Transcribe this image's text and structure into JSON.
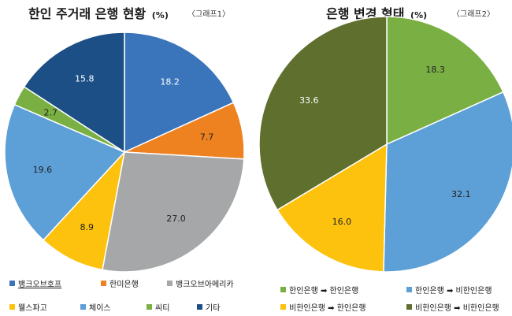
{
  "colors": {
    "bank_of_hope": "#3a74bb",
    "hanmi": "#ee8221",
    "bank_of_america": "#a5a7a8",
    "wells_fargo": "#fdc20e",
    "chase": "#5d9fd7",
    "citi": "#7ab043",
    "other": "#1c4f86",
    "k_to_k": "#7ab043",
    "k_to_nk": "#5d9fd7",
    "nk_to_k": "#fdc20e",
    "nk_to_nk": "#5e6f2e"
  },
  "chart_data": [
    {
      "type": "pie",
      "title": "한인 주거래 은행 현황",
      "unit": "(%)",
      "tag": "〈그래프1〉",
      "slices": [
        {
          "label": "뱅크오브호프",
          "value": 18.2,
          "display": "18.2",
          "color": "#3a74bb"
        },
        {
          "label": "한미은행",
          "value": 7.7,
          "display": "7.7",
          "color": "#ee8221"
        },
        {
          "label": "뱅크오브아메리카",
          "value": 27.0,
          "display": "27.0",
          "color": "#a5a7a8"
        },
        {
          "label": "웰스파고",
          "value": 8.9,
          "display": "8.9",
          "color": "#fdc20e"
        },
        {
          "label": "체이스",
          "value": 19.6,
          "display": "19.6",
          "color": "#5d9fd7"
        },
        {
          "label": "씨티",
          "value": 2.7,
          "display": "2.7",
          "color": "#7ab043"
        },
        {
          "label": "기타",
          "value": 15.8,
          "display": "15.8",
          "color": "#1c4f86"
        }
      ],
      "legend": [
        "뱅크오브호프",
        "한미은행",
        "뱅크오브아메리카",
        "웰스파고",
        "체이스",
        "씨티",
        "기타"
      ]
    },
    {
      "type": "pie",
      "title": "은행 변경 형태",
      "unit": "(%)",
      "tag": "〈그래프2〉",
      "slices": [
        {
          "label": "한인은행 ➡ 한인은행",
          "value": 18.3,
          "display": "18.3",
          "color": "#7ab043"
        },
        {
          "label": "한인은행 ➡ 비한인은행",
          "value": 32.1,
          "display": "32.1",
          "color": "#5d9fd7"
        },
        {
          "label": "비한인은행 ➡ 한인은행",
          "value": 16.0,
          "display": "16.0",
          "color": "#fdc20e"
        },
        {
          "label": "비한인은행 ➡ 비한인은행",
          "value": 33.6,
          "display": "33.6",
          "color": "#5e6f2e"
        }
      ],
      "legend": [
        "한인은행 ➡ 한인은행",
        "한인은행 ➡ 비한인은행",
        "비한인은행 ➡ 한인은행",
        "비한인은행 ➡ 비한인은행"
      ]
    }
  ]
}
